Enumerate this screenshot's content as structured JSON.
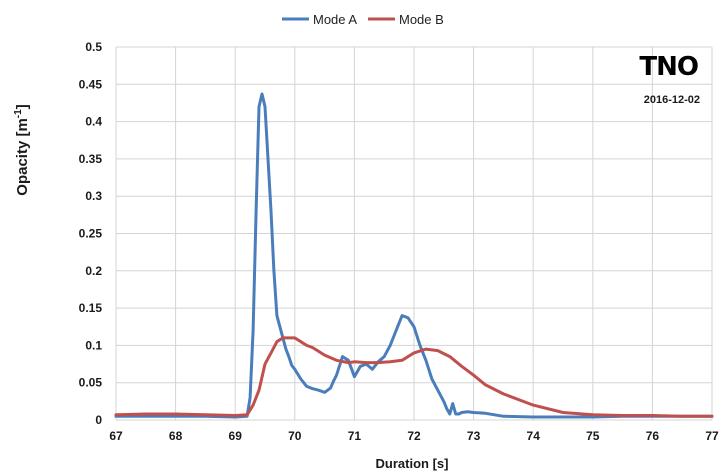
{
  "chart_data": {
    "type": "line",
    "xlabel": "Duration [s]",
    "ylabel_main": "Opacity [m",
    "ylabel_sup": "-1",
    "ylabel_close": "]",
    "xlim": [
      67,
      77
    ],
    "ylim": [
      0,
      0.5
    ],
    "xticks": [
      67,
      68,
      69,
      70,
      71,
      72,
      73,
      74,
      75,
      76,
      77
    ],
    "xtick_labels": [
      "67",
      "68",
      "69",
      "70",
      "71",
      "72",
      "73",
      "74",
      "75",
      "76",
      "77"
    ],
    "yticks": [
      0,
      0.05,
      0.1,
      0.15,
      0.2,
      0.25,
      0.3,
      0.35,
      0.4,
      0.45,
      0.5
    ],
    "ytick_labels": [
      "0",
      "0.05",
      "0.1",
      "0.15",
      "0.2",
      "0.25",
      "0.3",
      "0.35",
      "0.4",
      "0.45",
      "0.5"
    ],
    "grid": true,
    "legend_position": "top-center",
    "logo_text": "TNO",
    "date": "2016-12-02",
    "series": [
      {
        "name": "Mode A",
        "color": "#4a7ebb",
        "x": [
          67.0,
          67.5,
          68.0,
          68.5,
          69.0,
          69.2,
          69.25,
          69.3,
          69.35,
          69.4,
          69.45,
          69.5,
          69.55,
          69.6,
          69.65,
          69.7,
          69.75,
          69.8,
          69.85,
          69.9,
          69.95,
          70.0,
          70.1,
          70.2,
          70.3,
          70.4,
          70.5,
          70.6,
          70.65,
          70.7,
          70.8,
          70.9,
          71.0,
          71.1,
          71.2,
          71.3,
          71.4,
          71.5,
          71.6,
          71.7,
          71.8,
          71.9,
          72.0,
          72.1,
          72.2,
          72.3,
          72.4,
          72.5,
          72.55,
          72.6,
          72.65,
          72.7,
          72.75,
          72.8,
          72.9,
          73.0,
          73.2,
          73.5,
          74.0,
          74.5,
          75.0,
          75.5,
          76.0,
          76.5,
          77.0
        ],
        "y": [
          0.005,
          0.005,
          0.005,
          0.005,
          0.004,
          0.005,
          0.03,
          0.12,
          0.28,
          0.42,
          0.437,
          0.42,
          0.35,
          0.28,
          0.2,
          0.14,
          0.125,
          0.11,
          0.095,
          0.085,
          0.073,
          0.068,
          0.055,
          0.045,
          0.042,
          0.04,
          0.037,
          0.043,
          0.052,
          0.06,
          0.085,
          0.08,
          0.058,
          0.072,
          0.075,
          0.068,
          0.078,
          0.085,
          0.1,
          0.12,
          0.14,
          0.137,
          0.125,
          0.1,
          0.08,
          0.055,
          0.04,
          0.025,
          0.015,
          0.008,
          0.022,
          0.008,
          0.008,
          0.01,
          0.011,
          0.01,
          0.009,
          0.005,
          0.004,
          0.004,
          0.004,
          0.005,
          0.005,
          0.005,
          0.005
        ]
      },
      {
        "name": "Mode B",
        "color": "#c0504d",
        "x": [
          67.0,
          67.5,
          68.0,
          68.5,
          69.0,
          69.2,
          69.3,
          69.4,
          69.5,
          69.6,
          69.7,
          69.8,
          69.9,
          70.0,
          70.1,
          70.2,
          70.3,
          70.5,
          70.7,
          70.9,
          71.0,
          71.2,
          71.4,
          71.6,
          71.8,
          72.0,
          72.2,
          72.4,
          72.6,
          72.8,
          73.0,
          73.2,
          73.5,
          74.0,
          74.5,
          75.0,
          75.5,
          76.0,
          76.5,
          77.0
        ],
        "y": [
          0.007,
          0.008,
          0.008,
          0.007,
          0.006,
          0.007,
          0.02,
          0.04,
          0.075,
          0.09,
          0.105,
          0.11,
          0.11,
          0.11,
          0.105,
          0.1,
          0.097,
          0.087,
          0.08,
          0.077,
          0.078,
          0.077,
          0.077,
          0.078,
          0.08,
          0.09,
          0.095,
          0.093,
          0.085,
          0.072,
          0.06,
          0.047,
          0.035,
          0.02,
          0.01,
          0.007,
          0.006,
          0.006,
          0.005,
          0.005
        ]
      }
    ]
  }
}
